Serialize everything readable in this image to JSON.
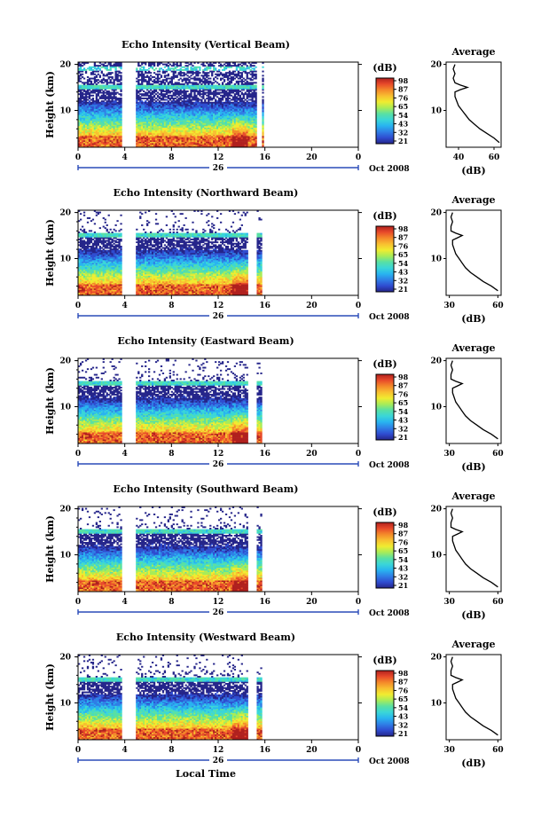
{
  "chart_data": [
    {
      "type": "heatmap",
      "title": "Echo Intensity (Vertical Beam)",
      "ylabel": "Height (km)",
      "ylim": [
        2,
        20.5
      ],
      "yticks": [
        20,
        10
      ],
      "xlim": [
        0,
        24
      ],
      "xticks": [
        "0",
        "4",
        "8",
        "12",
        "16",
        "20",
        "0"
      ],
      "date_label": "26",
      "month_year": "Oct 2008",
      "colorbar": {
        "label": "(dB)",
        "ticks": [
          "98",
          "87",
          "76",
          "65",
          "54",
          "43",
          "32",
          "21"
        ]
      },
      "data_gaps_hours": [
        [
          3.8,
          4.9
        ],
        [
          15.3,
          15.7
        ],
        [
          15.9,
          24
        ]
      ],
      "profile": {
        "title": "Average",
        "xlabel": "(dB)",
        "xticks": [
          "40",
          "60"
        ],
        "xlim": [
          33,
          64
        ],
        "heights": [
          3,
          4,
          5,
          6,
          7,
          8,
          9,
          10,
          11,
          12,
          13,
          14,
          14.5,
          15,
          15.5,
          16,
          17,
          18,
          19,
          20
        ],
        "values": [
          63,
          60,
          56,
          52,
          49,
          46,
          44,
          42,
          40,
          39,
          38,
          38,
          41,
          45,
          41,
          38,
          37,
          38,
          37,
          38
        ]
      }
    },
    {
      "type": "heatmap",
      "title": "Echo Intensity (Northward Beam)",
      "ylabel": "Height (km)",
      "ylim": [
        2,
        20.5
      ],
      "yticks": [
        20,
        10
      ],
      "xlim": [
        0,
        24
      ],
      "xticks": [
        "0",
        "4",
        "8",
        "12",
        "16",
        "20",
        "0"
      ],
      "date_label": "26",
      "month_year": "Oct 2008",
      "colorbar": {
        "label": "(dB)",
        "ticks": [
          "98",
          "87",
          "76",
          "65",
          "54",
          "43",
          "32",
          "21"
        ]
      },
      "data_gaps_hours": [
        [
          3.8,
          4.9
        ],
        [
          14.6,
          15.3
        ],
        [
          15.7,
          24
        ]
      ],
      "profile": {
        "title": "Average",
        "xlabel": "(dB)",
        "xticks": [
          "30",
          "60"
        ],
        "xlim": [
          28,
          62
        ],
        "heights": [
          3,
          4,
          5,
          6,
          7,
          8,
          9,
          10,
          11,
          12,
          13,
          14,
          14.5,
          15,
          15.5,
          16,
          17,
          18,
          19,
          20
        ],
        "values": [
          60,
          56,
          51,
          47,
          43,
          40,
          38,
          36,
          34,
          33,
          32,
          32,
          35,
          38,
          34,
          31,
          31,
          32,
          31,
          32
        ]
      }
    },
    {
      "type": "heatmap",
      "title": "Echo Intensity (Eastward Beam)",
      "ylabel": "Height (km)",
      "ylim": [
        2,
        20.5
      ],
      "yticks": [
        20,
        10
      ],
      "xlim": [
        0,
        24
      ],
      "xticks": [
        "0",
        "4",
        "8",
        "12",
        "16",
        "20",
        "0"
      ],
      "date_label": "26",
      "month_year": "Oct 2008",
      "colorbar": {
        "label": "(dB)",
        "ticks": [
          "98",
          "87",
          "76",
          "65",
          "54",
          "43",
          "32",
          "21"
        ]
      },
      "data_gaps_hours": [
        [
          3.8,
          4.9
        ],
        [
          14.6,
          15.3
        ],
        [
          15.7,
          24
        ]
      ],
      "profile": {
        "title": "Average",
        "xlabel": "(dB)",
        "xticks": [
          "30",
          "60"
        ],
        "xlim": [
          28,
          62
        ],
        "heights": [
          3,
          4,
          5,
          6,
          7,
          8,
          9,
          10,
          11,
          12,
          13,
          14,
          14.5,
          15,
          15.5,
          16,
          17,
          18,
          19,
          20
        ],
        "values": [
          60,
          56,
          51,
          47,
          43,
          40,
          38,
          36,
          34,
          33,
          32,
          32,
          35,
          38,
          34,
          31,
          31,
          32,
          31,
          32
        ]
      }
    },
    {
      "type": "heatmap",
      "title": "Echo Intensity (Southward Beam)",
      "ylabel": "Height (km)",
      "ylim": [
        2,
        20.5
      ],
      "yticks": [
        20,
        10
      ],
      "xlim": [
        0,
        24
      ],
      "xticks": [
        "0",
        "4",
        "8",
        "12",
        "16",
        "20",
        "0"
      ],
      "date_label": "26",
      "month_year": "Oct 2008",
      "colorbar": {
        "label": "(dB)",
        "ticks": [
          "98",
          "87",
          "76",
          "65",
          "54",
          "43",
          "32",
          "21"
        ]
      },
      "data_gaps_hours": [
        [
          3.8,
          4.9
        ],
        [
          14.6,
          15.3
        ],
        [
          15.7,
          24
        ]
      ],
      "profile": {
        "title": "Average",
        "xlabel": "(dB)",
        "xticks": [
          "30",
          "60"
        ],
        "xlim": [
          28,
          62
        ],
        "heights": [
          3,
          4,
          5,
          6,
          7,
          8,
          9,
          10,
          11,
          12,
          13,
          14,
          14.5,
          15,
          15.5,
          16,
          17,
          18,
          19,
          20
        ],
        "values": [
          60,
          56,
          51,
          47,
          43,
          40,
          38,
          36,
          34,
          33,
          32,
          32,
          35,
          38,
          34,
          31,
          31,
          32,
          31,
          32
        ]
      }
    },
    {
      "type": "heatmap",
      "title": "Echo Intensity (Westward Beam)",
      "ylabel": "Height (km)",
      "ylim": [
        2,
        20.5
      ],
      "yticks": [
        20,
        10
      ],
      "xlim": [
        0,
        24
      ],
      "xticks": [
        "0",
        "4",
        "8",
        "12",
        "16",
        "20",
        "0"
      ],
      "date_label": "26",
      "month_year": "Oct 2008",
      "xlabel": "Local Time",
      "colorbar": {
        "label": "(dB)",
        "ticks": [
          "98",
          "87",
          "76",
          "65",
          "54",
          "43",
          "32",
          "21"
        ]
      },
      "data_gaps_hours": [
        [
          3.8,
          4.9
        ],
        [
          14.6,
          15.3
        ],
        [
          15.7,
          24
        ]
      ],
      "profile": {
        "title": "Average",
        "xlabel": "(dB)",
        "xticks": [
          "30",
          "60"
        ],
        "xlim": [
          28,
          62
        ],
        "heights": [
          3,
          4,
          5,
          6,
          7,
          8,
          9,
          10,
          11,
          12,
          13,
          14,
          14.5,
          15,
          15.5,
          16,
          17,
          18,
          19,
          20
        ],
        "values": [
          60,
          56,
          51,
          47,
          43,
          40,
          38,
          36,
          34,
          33,
          32,
          32,
          35,
          38,
          34,
          31,
          31,
          32,
          31,
          32
        ]
      }
    }
  ],
  "colors": {
    "colormap": [
      "#25258a",
      "#2f4cd0",
      "#2f7fe6",
      "#28b4f0",
      "#3ad6d8",
      "#58e0a4",
      "#a8ec58",
      "#f0ec30",
      "#f8c030",
      "#f48a2a",
      "#e84a2a",
      "#b0201e"
    ],
    "axis": "#000000",
    "date_marker": "#2a4bb8"
  }
}
